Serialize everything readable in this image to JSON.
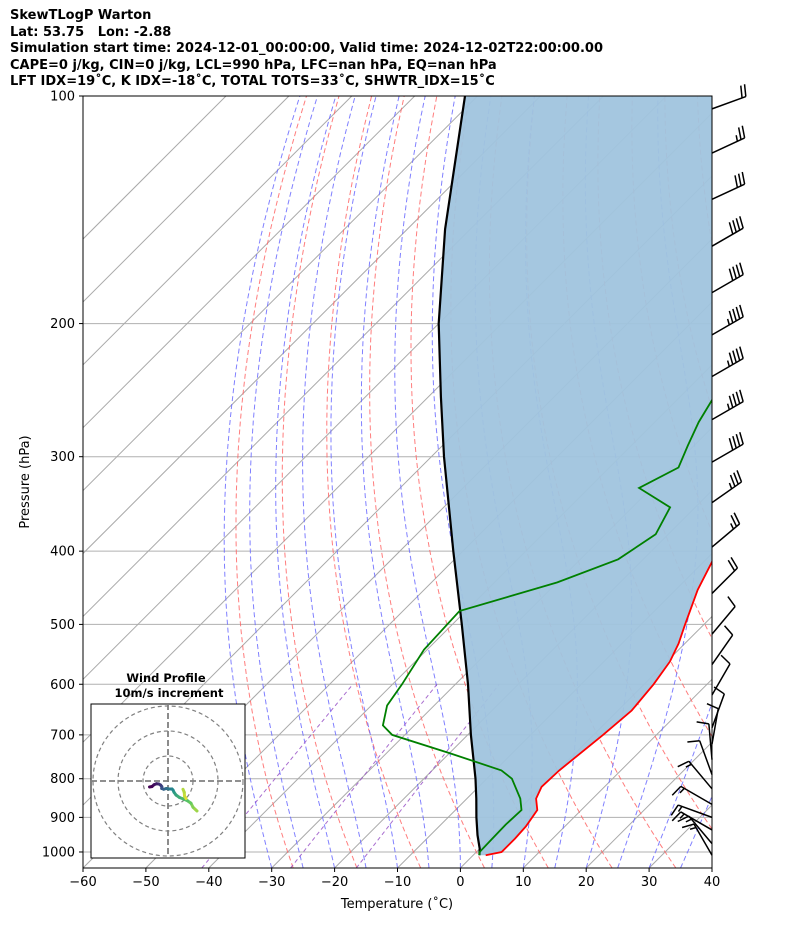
{
  "header": {
    "lines": [
      "SkewTLogP Warton",
      "Lat: 53.75   Lon: -2.88",
      "Simulation start time: 2024-12-01_00:00:00, Valid time: 2024-12-02T22:00:00.00",
      "CAPE=0 j/kg, CIN=0 j/kg, LCL=990 hPa, LFC=nan hPa, EQ=nan hPa",
      "LFT IDX=19˚C, K IDX=-18˚C, TOTAL TOTS=33˚C, SHWTR_IDX=15˚C"
    ]
  },
  "chart_data": {
    "type": "skew-t log-p",
    "xlabel": "Temperature (˚C)",
    "ylabel": "Pressure (hPa)",
    "xlim": [
      -60,
      40
    ],
    "ylim": [
      1050,
      100
    ],
    "x_ticks": [
      -60,
      -50,
      -40,
      -30,
      -20,
      -10,
      0,
      10,
      20,
      30,
      40
    ],
    "y_ticks": [
      1000,
      900,
      800,
      700,
      600,
      500,
      400,
      300,
      200,
      100
    ],
    "grid": true,
    "temperature": {
      "color": "#ff0000",
      "points": [
        {
          "p": 1010,
          "t": 2
        },
        {
          "p": 1000,
          "t": 4
        },
        {
          "p": 960,
          "t": 4
        },
        {
          "p": 925,
          "t": 3.8
        },
        {
          "p": 880,
          "t": 3
        },
        {
          "p": 850,
          "t": 1
        },
        {
          "p": 820,
          "t": 0
        },
        {
          "p": 780,
          "t": 0.2
        },
        {
          "p": 700,
          "t": 1.5
        },
        {
          "p": 650,
          "t": 2.2
        },
        {
          "p": 600,
          "t": 1.5
        },
        {
          "p": 560,
          "t": 0.5
        },
        {
          "p": 530,
          "t": -1
        },
        {
          "p": 500,
          "t": -3
        },
        {
          "p": 450,
          "t": -6.5
        },
        {
          "p": 400,
          "t": -9.5
        },
        {
          "p": 350,
          "t": -14
        },
        {
          "p": 300,
          "t": -20
        },
        {
          "p": 270,
          "t": -25
        },
        {
          "p": 250,
          "t": -29
        },
        {
          "p": 230,
          "t": -31
        },
        {
          "p": 200,
          "t": -34
        },
        {
          "p": 180,
          "t": -38
        },
        {
          "p": 160,
          "t": -43
        },
        {
          "p": 150,
          "t": -46
        },
        {
          "p": 140,
          "t": -49
        },
        {
          "p": 125,
          "t": -53
        },
        {
          "p": 115,
          "t": -57
        },
        {
          "p": 100,
          "t": -62
        }
      ]
    },
    "dewpoint": {
      "color": "#008000",
      "points": [
        {
          "p": 1010,
          "t": 1
        },
        {
          "p": 1000,
          "t": 0.5
        },
        {
          "p": 960,
          "t": 0.4
        },
        {
          "p": 920,
          "t": 0.3
        },
        {
          "p": 880,
          "t": 0.5
        },
        {
          "p": 850,
          "t": -1.5
        },
        {
          "p": 800,
          "t": -6
        },
        {
          "p": 780,
          "t": -9
        },
        {
          "p": 740,
          "t": -20
        },
        {
          "p": 700,
          "t": -32
        },
        {
          "p": 680,
          "t": -35
        },
        {
          "p": 640,
          "t": -37.5
        },
        {
          "p": 600,
          "t": -38.5
        },
        {
          "p": 540,
          "t": -40.5
        },
        {
          "p": 480,
          "t": -41
        },
        {
          "p": 440,
          "t": -30
        },
        {
          "p": 410,
          "t": -24
        },
        {
          "p": 380,
          "t": -22
        },
        {
          "p": 350,
          "t": -24
        },
        {
          "p": 330,
          "t": -32
        },
        {
          "p": 310,
          "t": -29
        },
        {
          "p": 290,
          "t": -31
        },
        {
          "p": 270,
          "t": -33
        },
        {
          "p": 245,
          "t": -35
        },
        {
          "p": 210,
          "t": -37
        },
        {
          "p": 190,
          "t": -40
        },
        {
          "p": 170,
          "t": -45
        },
        {
          "p": 155,
          "t": -50
        },
        {
          "p": 140,
          "t": -55
        },
        {
          "p": 125,
          "t": -57
        },
        {
          "p": 110,
          "t": -60
        },
        {
          "p": 100,
          "t": -63
        }
      ]
    },
    "parcel_profile": {
      "color": "#000000",
      "points": [
        {
          "p": 1010,
          "t": 1
        },
        {
          "p": 990,
          "t": 0
        },
        {
          "p": 950,
          "t": -2.5
        },
        {
          "p": 900,
          "t": -5.5
        },
        {
          "p": 850,
          "t": -8.5
        },
        {
          "p": 800,
          "t": -11.8
        },
        {
          "p": 700,
          "t": -19.5
        },
        {
          "p": 600,
          "t": -28
        },
        {
          "p": 500,
          "t": -38.5
        },
        {
          "p": 400,
          "t": -51.5
        },
        {
          "p": 300,
          "t": -68
        },
        {
          "p": 250,
          "t": -78
        },
        {
          "p": 200,
          "t": -90
        },
        {
          "p": 150,
          "t": -104
        },
        {
          "p": 100,
          "t": -122
        }
      ]
    },
    "cin_shading": {
      "color": "#a0c4de",
      "between": "temperature and parcel_profile"
    },
    "reference_lines": {
      "isotherm_color": "#a9a9a9",
      "dry_adiabat_color": "#ff6666",
      "moist_adiabat_color": "#6a6aff",
      "mixing_ratio_color": "#9954c7"
    },
    "wind_barbs": [
      {
        "p": 1010,
        "speed_kt": 15,
        "dir": 330
      },
      {
        "p": 975,
        "speed_kt": 15,
        "dir": 320
      },
      {
        "p": 935,
        "speed_kt": 15,
        "dir": 300
      },
      {
        "p": 900,
        "speed_kt": 15,
        "dir": 290
      },
      {
        "p": 865,
        "speed_kt": 15,
        "dir": 300
      },
      {
        "p": 825,
        "speed_kt": 15,
        "dir": 320
      },
      {
        "p": 790,
        "speed_kt": 10,
        "dir": 340
      },
      {
        "p": 755,
        "speed_kt": 10,
        "dir": 355
      },
      {
        "p": 720,
        "speed_kt": 10,
        "dir": 10
      },
      {
        "p": 685,
        "speed_kt": 10,
        "dir": 20
      },
      {
        "p": 620,
        "speed_kt": 10,
        "dir": 30
      },
      {
        "p": 565,
        "speed_kt": 10,
        "dir": 35
      },
      {
        "p": 515,
        "speed_kt": 10,
        "dir": 40
      },
      {
        "p": 455,
        "speed_kt": 20,
        "dir": 45
      },
      {
        "p": 395,
        "speed_kt": 25,
        "dir": 50
      },
      {
        "p": 345,
        "speed_kt": 35,
        "dir": 55
      },
      {
        "p": 305,
        "speed_kt": 40,
        "dir": 60
      },
      {
        "p": 268,
        "speed_kt": 45,
        "dir": 60
      },
      {
        "p": 235,
        "speed_kt": 45,
        "dir": 60
      },
      {
        "p": 207,
        "speed_kt": 45,
        "dir": 60
      },
      {
        "p": 182,
        "speed_kt": 40,
        "dir": 60
      },
      {
        "p": 158,
        "speed_kt": 40,
        "dir": 60
      },
      {
        "p": 137,
        "speed_kt": 30,
        "dir": 65
      },
      {
        "p": 119,
        "speed_kt": 25,
        "dir": 65
      },
      {
        "p": 104,
        "speed_kt": 20,
        "dir": 70
      }
    ],
    "hodograph": {
      "title": "Wind Profile",
      "subtitle": "10m/s increment",
      "rings_ms": [
        10,
        20,
        30
      ],
      "points_ms": [
        [
          11.6,
          -12.0
        ],
        [
          10.0,
          -10.5
        ],
        [
          9.2,
          -8.9
        ],
        [
          7.8,
          -7.9
        ],
        [
          6.2,
          -7.2
        ],
        [
          4.6,
          -6.6
        ],
        [
          3.2,
          -5.6
        ],
        [
          2.4,
          -4.5
        ],
        [
          2.0,
          -3.6
        ],
        [
          1.6,
          -3.2
        ],
        [
          0.5,
          -3.2
        ],
        [
          -0.7,
          -3.0
        ],
        [
          -1.7,
          -3.3
        ],
        [
          -2.5,
          -3.0
        ],
        [
          -2.5,
          -2.2
        ],
        [
          -3.0,
          -1.6
        ],
        [
          -3.7,
          -1.2
        ],
        [
          -4.6,
          -1.1
        ],
        [
          -5.6,
          -1.5
        ],
        [
          -6.4,
          -2.2
        ],
        [
          -7.4,
          -2.4
        ]
      ],
      "green_branch_ms": [
        [
          7.2,
          -7.0
        ],
        [
          6.6,
          -6.0
        ],
        [
          6.5,
          -4.5
        ],
        [
          6.0,
          -3.3
        ]
      ],
      "colormap": "viridis"
    }
  }
}
